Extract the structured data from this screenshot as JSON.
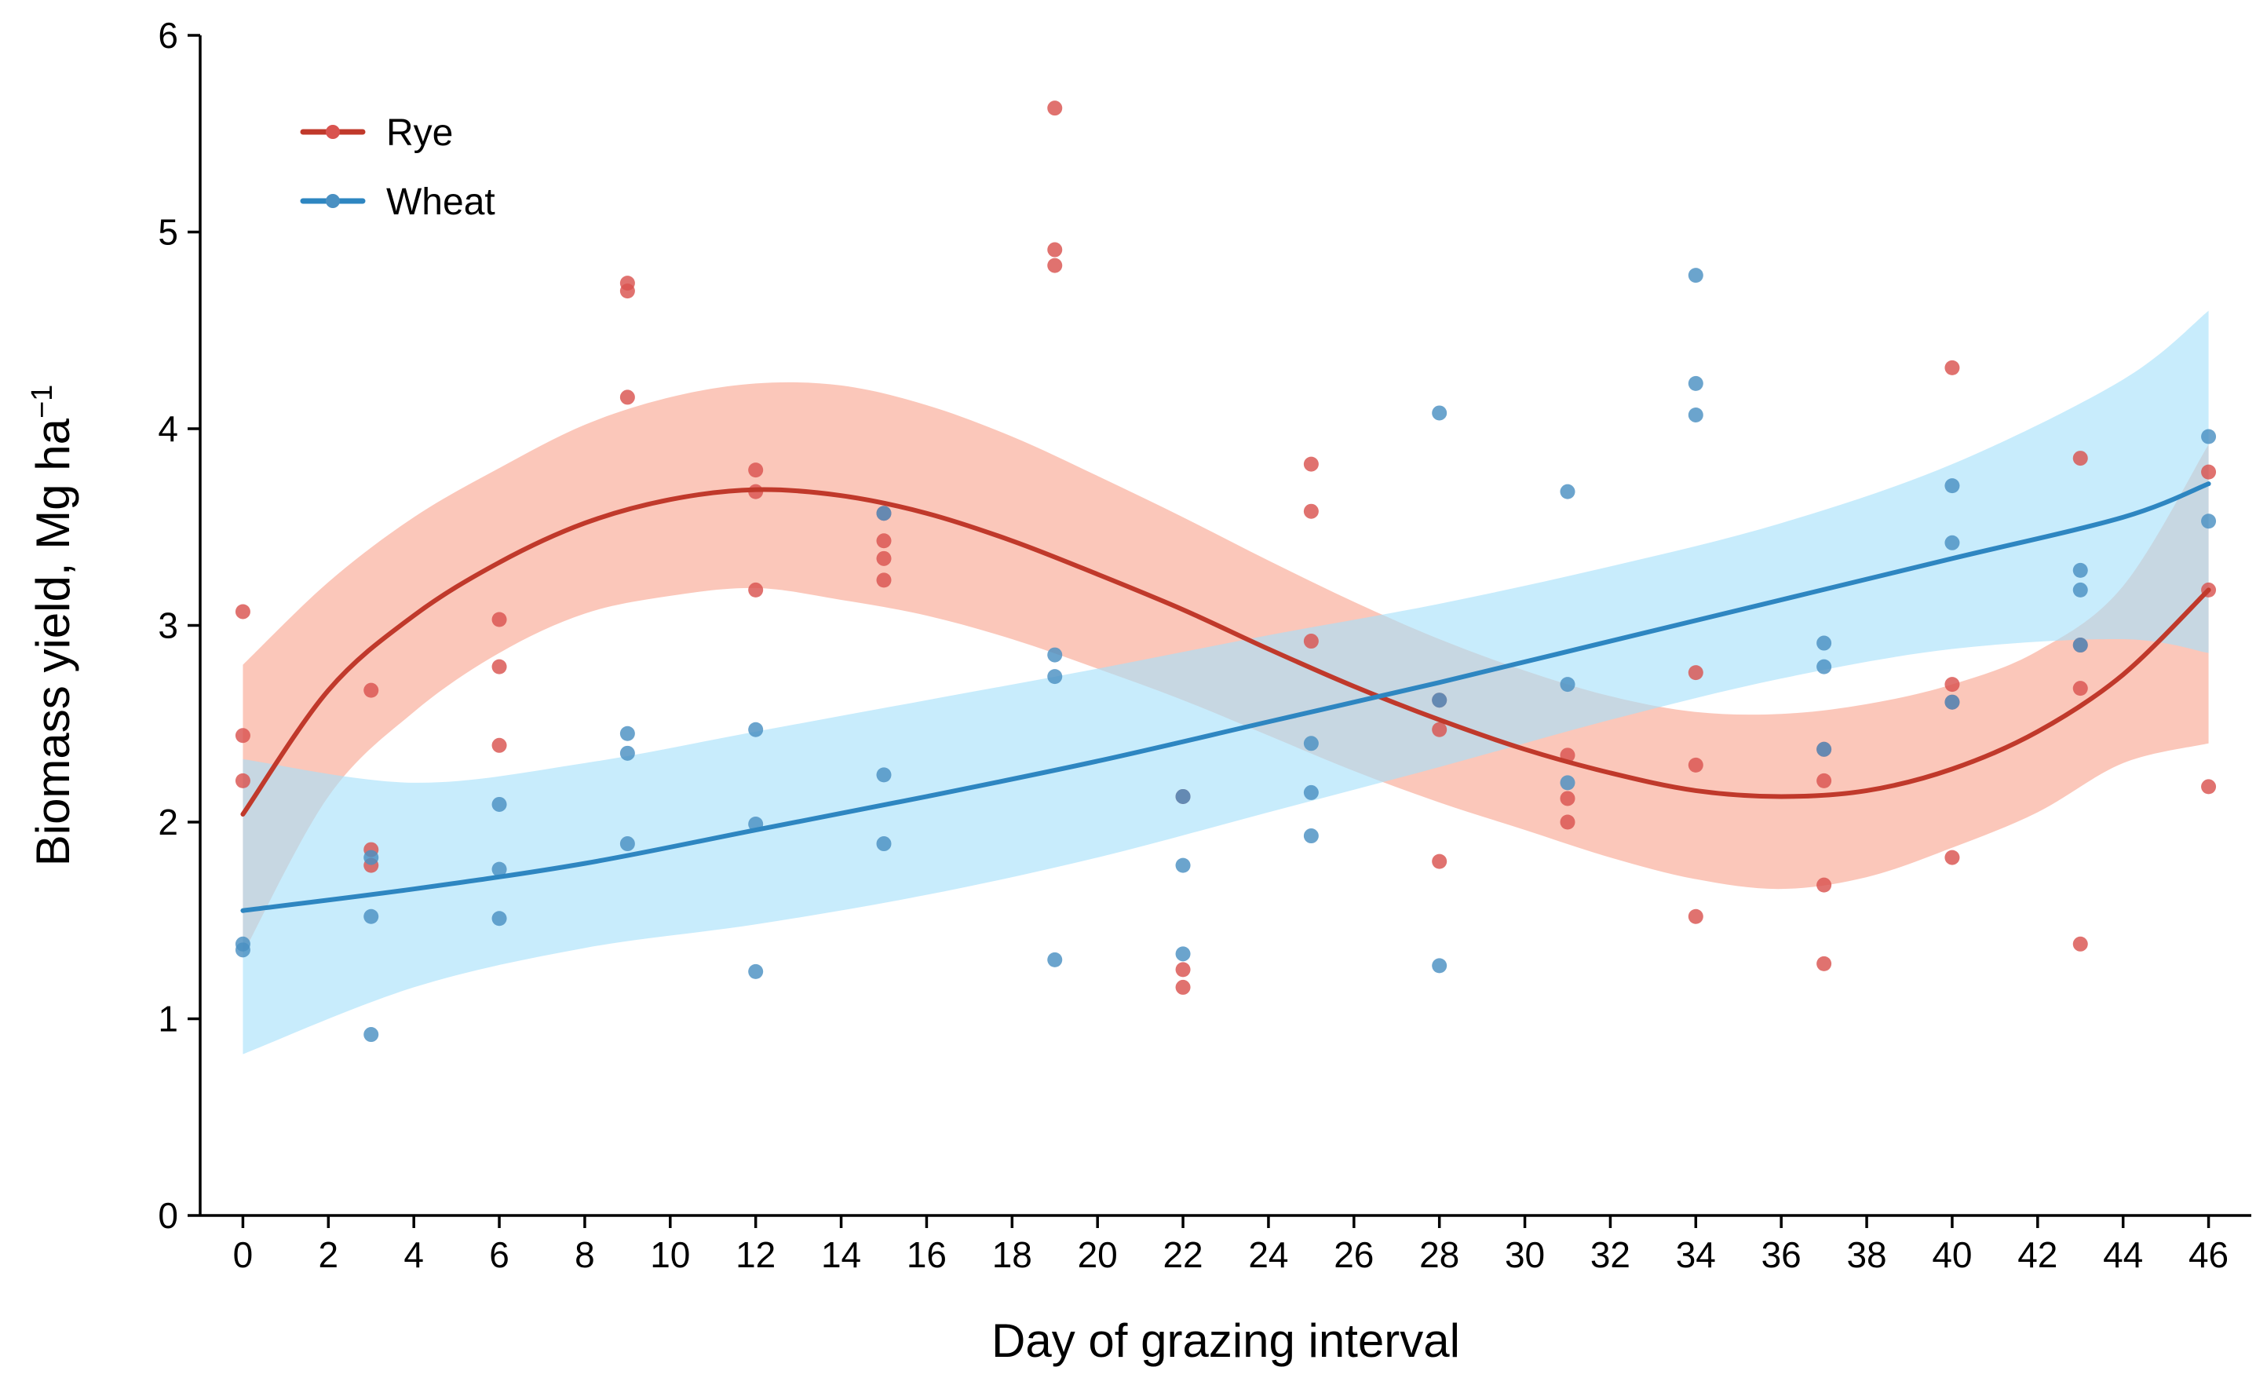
{
  "chart_data": {
    "type": "scatter",
    "title": "",
    "xlabel": "Day of grazing interval",
    "ylabel": "Biomass yield, Mg ha",
    "ylabel_superscript": "−1",
    "xlim": [
      -1,
      47
    ],
    "ylim": [
      0,
      6
    ],
    "x_ticks": [
      0,
      2,
      4,
      6,
      8,
      10,
      12,
      14,
      16,
      18,
      20,
      22,
      24,
      26,
      28,
      30,
      32,
      34,
      36,
      38,
      40,
      42,
      44,
      46
    ],
    "y_ticks": [
      0,
      1,
      2,
      3,
      4,
      5,
      6
    ],
    "grid": false,
    "legend_position": "top-left",
    "series": [
      {
        "name": "Rye",
        "color": "#c0392b",
        "point_color": "#d9534f",
        "band_color": "#f9a58f",
        "points": [
          [
            0,
            3.07
          ],
          [
            0,
            2.44
          ],
          [
            0,
            2.21
          ],
          [
            3,
            2.67
          ],
          [
            3,
            1.86
          ],
          [
            3,
            1.78
          ],
          [
            6,
            3.03
          ],
          [
            6,
            2.79
          ],
          [
            6,
            2.39
          ],
          [
            9,
            4.74
          ],
          [
            9,
            4.7
          ],
          [
            9,
            4.16
          ],
          [
            12,
            3.79
          ],
          [
            12,
            3.68
          ],
          [
            12,
            3.18
          ],
          [
            15,
            3.57
          ],
          [
            15,
            3.43
          ],
          [
            15,
            3.34
          ],
          [
            15,
            3.23
          ],
          [
            19,
            5.63
          ],
          [
            19,
            4.91
          ],
          [
            19,
            4.83
          ],
          [
            22,
            2.13
          ],
          [
            22,
            1.25
          ],
          [
            22,
            1.16
          ],
          [
            25,
            3.82
          ],
          [
            25,
            3.58
          ],
          [
            25,
            2.92
          ],
          [
            28,
            2.62
          ],
          [
            28,
            2.47
          ],
          [
            28,
            1.8
          ],
          [
            31,
            2.34
          ],
          [
            31,
            2.12
          ],
          [
            31,
            2.0
          ],
          [
            34,
            2.76
          ],
          [
            34,
            2.29
          ],
          [
            34,
            1.52
          ],
          [
            37,
            2.37
          ],
          [
            37,
            2.21
          ],
          [
            37,
            1.68
          ],
          [
            37,
            1.28
          ],
          [
            40,
            4.31
          ],
          [
            40,
            2.7
          ],
          [
            40,
            2.61
          ],
          [
            40,
            1.82
          ],
          [
            43,
            3.85
          ],
          [
            43,
            2.9
          ],
          [
            43,
            2.68
          ],
          [
            43,
            1.38
          ],
          [
            46,
            3.78
          ],
          [
            46,
            3.18
          ],
          [
            46,
            2.18
          ]
        ],
        "fit": [
          [
            0,
            2.04
          ],
          [
            2,
            2.67
          ],
          [
            4,
            3.05
          ],
          [
            6,
            3.32
          ],
          [
            8,
            3.52
          ],
          [
            10,
            3.64
          ],
          [
            12,
            3.69
          ],
          [
            14,
            3.66
          ],
          [
            16,
            3.57
          ],
          [
            18,
            3.43
          ],
          [
            20,
            3.26
          ],
          [
            22,
            3.08
          ],
          [
            24,
            2.88
          ],
          [
            26,
            2.69
          ],
          [
            28,
            2.52
          ],
          [
            30,
            2.37
          ],
          [
            32,
            2.25
          ],
          [
            34,
            2.16
          ],
          [
            36,
            2.13
          ],
          [
            38,
            2.16
          ],
          [
            40,
            2.27
          ],
          [
            42,
            2.46
          ],
          [
            44,
            2.75
          ],
          [
            46,
            3.18
          ]
        ],
        "ci_upper": [
          [
            0,
            2.8
          ],
          [
            2,
            3.22
          ],
          [
            4,
            3.55
          ],
          [
            6,
            3.8
          ],
          [
            8,
            4.02
          ],
          [
            10,
            4.16
          ],
          [
            12,
            4.23
          ],
          [
            14,
            4.22
          ],
          [
            16,
            4.12
          ],
          [
            18,
            3.96
          ],
          [
            20,
            3.76
          ],
          [
            22,
            3.55
          ],
          [
            24,
            3.33
          ],
          [
            26,
            3.12
          ],
          [
            28,
            2.93
          ],
          [
            30,
            2.77
          ],
          [
            32,
            2.64
          ],
          [
            34,
            2.56
          ],
          [
            36,
            2.55
          ],
          [
            38,
            2.6
          ],
          [
            40,
            2.7
          ],
          [
            42,
            2.87
          ],
          [
            44,
            3.2
          ],
          [
            46,
            3.92
          ]
        ],
        "ci_lower": [
          [
            0,
            1.33
          ],
          [
            2,
            2.13
          ],
          [
            4,
            2.56
          ],
          [
            6,
            2.86
          ],
          [
            8,
            3.06
          ],
          [
            10,
            3.15
          ],
          [
            12,
            3.19
          ],
          [
            14,
            3.13
          ],
          [
            16,
            3.05
          ],
          [
            18,
            2.93
          ],
          [
            20,
            2.78
          ],
          [
            22,
            2.62
          ],
          [
            24,
            2.44
          ],
          [
            26,
            2.26
          ],
          [
            28,
            2.1
          ],
          [
            30,
            1.96
          ],
          [
            32,
            1.82
          ],
          [
            34,
            1.71
          ],
          [
            36,
            1.66
          ],
          [
            38,
            1.72
          ],
          [
            40,
            1.87
          ],
          [
            42,
            2.05
          ],
          [
            44,
            2.3
          ],
          [
            46,
            2.4
          ]
        ]
      },
      {
        "name": "Wheat",
        "color": "#2e86c1",
        "point_color": "#4a90c2",
        "band_color": "#a6e1fa",
        "points": [
          [
            0,
            1.38
          ],
          [
            0,
            1.35
          ],
          [
            3,
            1.82
          ],
          [
            3,
            1.52
          ],
          [
            3,
            0.92
          ],
          [
            6,
            2.09
          ],
          [
            6,
            1.76
          ],
          [
            6,
            1.51
          ],
          [
            9,
            2.45
          ],
          [
            9,
            2.35
          ],
          [
            9,
            1.89
          ],
          [
            12,
            2.47
          ],
          [
            12,
            1.99
          ],
          [
            12,
            1.24
          ],
          [
            15,
            3.57
          ],
          [
            15,
            2.24
          ],
          [
            15,
            1.89
          ],
          [
            19,
            2.85
          ],
          [
            19,
            2.74
          ],
          [
            19,
            1.3
          ],
          [
            22,
            2.13
          ],
          [
            22,
            1.78
          ],
          [
            22,
            1.33
          ],
          [
            25,
            2.4
          ],
          [
            25,
            2.15
          ],
          [
            25,
            1.93
          ],
          [
            28,
            4.08
          ],
          [
            28,
            2.62
          ],
          [
            28,
            1.27
          ],
          [
            31,
            3.68
          ],
          [
            31,
            2.7
          ],
          [
            31,
            2.2
          ],
          [
            34,
            4.78
          ],
          [
            34,
            4.23
          ],
          [
            34,
            4.07
          ],
          [
            37,
            2.91
          ],
          [
            37,
            2.79
          ],
          [
            37,
            2.37
          ],
          [
            40,
            3.71
          ],
          [
            40,
            3.42
          ],
          [
            40,
            2.61
          ],
          [
            43,
            3.28
          ],
          [
            43,
            3.18
          ],
          [
            43,
            2.9
          ],
          [
            46,
            3.96
          ],
          [
            46,
            3.53
          ]
        ],
        "fit": [
          [
            0,
            1.55
          ],
          [
            4,
            1.66
          ],
          [
            8,
            1.79
          ],
          [
            12,
            1.96
          ],
          [
            16,
            2.13
          ],
          [
            20,
            2.31
          ],
          [
            24,
            2.51
          ],
          [
            28,
            2.71
          ],
          [
            32,
            2.92
          ],
          [
            36,
            3.13
          ],
          [
            40,
            3.34
          ],
          [
            44,
            3.55
          ],
          [
            46,
            3.72
          ]
        ],
        "ci_upper": [
          [
            0,
            2.32
          ],
          [
            4,
            2.2
          ],
          [
            8,
            2.3
          ],
          [
            12,
            2.46
          ],
          [
            16,
            2.62
          ],
          [
            20,
            2.78
          ],
          [
            24,
            2.95
          ],
          [
            28,
            3.11
          ],
          [
            32,
            3.3
          ],
          [
            36,
            3.52
          ],
          [
            40,
            3.82
          ],
          [
            44,
            4.25
          ],
          [
            46,
            4.6
          ]
        ],
        "ci_lower": [
          [
            0,
            0.82
          ],
          [
            4,
            1.16
          ],
          [
            8,
            1.36
          ],
          [
            12,
            1.48
          ],
          [
            16,
            1.63
          ],
          [
            20,
            1.82
          ],
          [
            24,
            2.05
          ],
          [
            28,
            2.28
          ],
          [
            32,
            2.52
          ],
          [
            36,
            2.73
          ],
          [
            40,
            2.88
          ],
          [
            44,
            2.93
          ],
          [
            46,
            2.86
          ]
        ]
      }
    ]
  }
}
